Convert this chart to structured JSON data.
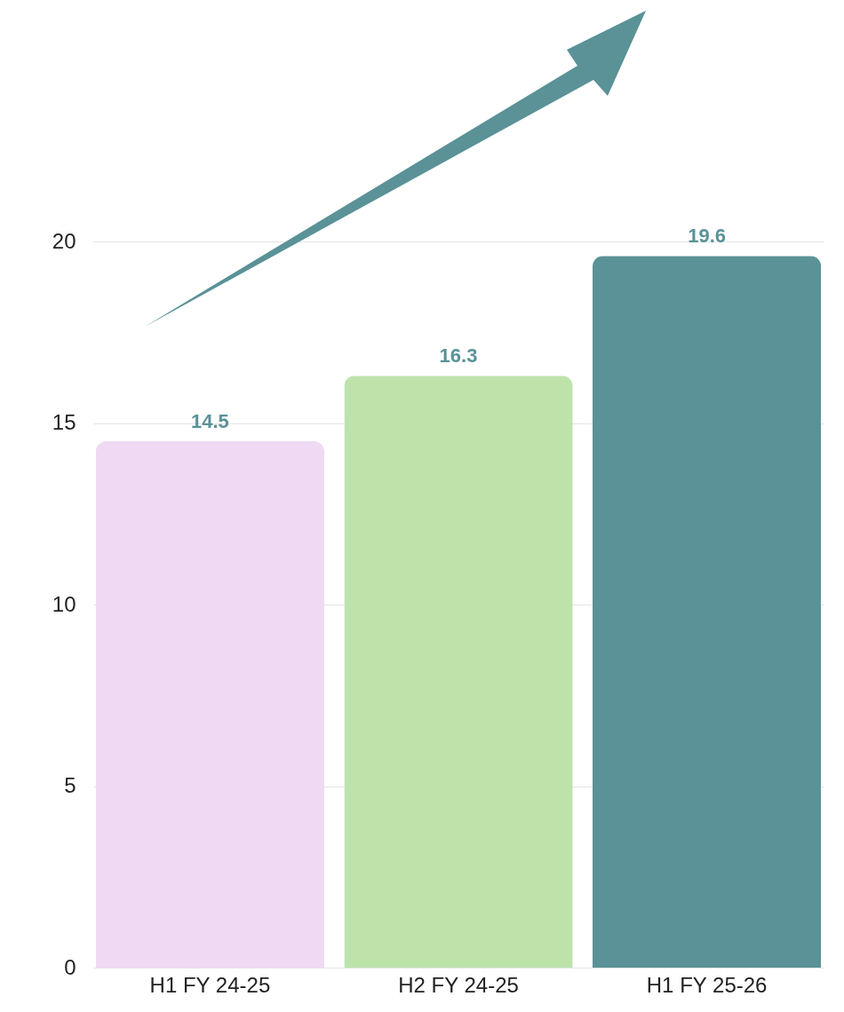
{
  "chart_data": {
    "type": "bar",
    "categories": [
      "H1 FY 24-25",
      "H2 FY 24-25",
      "H1 FY 25-26"
    ],
    "values": [
      14.5,
      16.3,
      19.6
    ],
    "colors": [
      "#efd9f3",
      "#bde3ab",
      "#5a9297"
    ],
    "ylim": [
      0,
      20
    ],
    "yticks": [
      0,
      5,
      10,
      15,
      20
    ],
    "grid": "y",
    "data_labels": true
  }
}
